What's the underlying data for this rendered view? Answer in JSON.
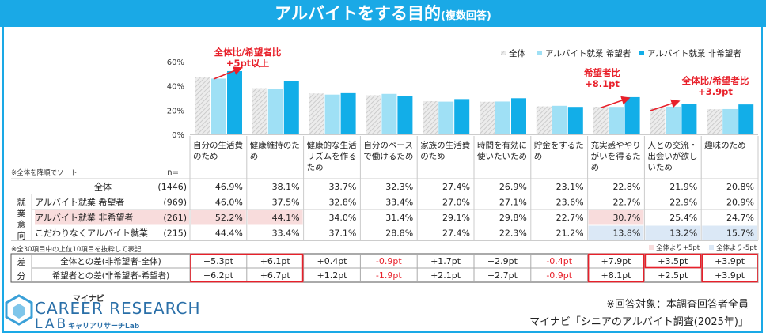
{
  "title": {
    "main": "アルバイトをする目的",
    "sub": "(複数回答)"
  },
  "colors": {
    "all": "#d9d9d9",
    "hope": "#9fe0f5",
    "nonhope": "#12aee8",
    "accent": "#e8202a",
    "pink": "#f8dcdc",
    "blue": "#dbe8f6"
  },
  "chart_data": {
    "type": "bar",
    "ylim": [
      0,
      60
    ],
    "yticks": [
      "0%",
      "20%",
      "40%",
      "60%"
    ],
    "legend": [
      "全体",
      "アルバイト就業 希望者",
      "アルバイト就業 非希望者"
    ],
    "categories": [
      [
        "自分の生活費",
        "のため"
      ],
      [
        "健康維持のた",
        "め"
      ],
      [
        "健康的な生活",
        "リズムを作る",
        "ため"
      ],
      [
        "自分のペース",
        "で働けるため"
      ],
      [
        "家族の生活費",
        "のため"
      ],
      [
        "時間を有効に",
        "使いたいため"
      ],
      [
        "貯金をするた",
        "め"
      ],
      [
        "充実感ややり",
        "がいを得るた",
        "め"
      ],
      [
        "人との交流・",
        "出会いが欲し",
        "いため"
      ],
      [
        "趣味のため"
      ]
    ],
    "series": [
      {
        "name": "全体",
        "values": [
          46.9,
          38.1,
          33.7,
          32.3,
          27.4,
          26.9,
          23.1,
          22.8,
          21.9,
          20.8
        ]
      },
      {
        "name": "アルバイト就業 希望者",
        "values": [
          46.0,
          37.5,
          32.8,
          33.4,
          27.0,
          27.1,
          23.6,
          22.7,
          22.9,
          20.9
        ]
      },
      {
        "name": "アルバイト就業 非希望者",
        "values": [
          52.2,
          44.1,
          34.0,
          31.4,
          29.1,
          29.8,
          22.7,
          30.7,
          25.4,
          24.7
        ]
      }
    ],
    "annotations": [
      {
        "lines": [
          "全体比/希望者比",
          "+5pt以上"
        ],
        "category": 0
      },
      {
        "lines": [
          "希望者比",
          "+8.1pt"
        ],
        "category": 7
      },
      {
        "lines": [
          "全体比/希望者比",
          "+3.9pt"
        ],
        "category": 9
      }
    ]
  },
  "table": {
    "sort_note": "※全体を降順でソート",
    "n_header": "n=",
    "row_group_label": [
      "就",
      "業",
      "意",
      "向"
    ],
    "diff_group_label": [
      "差",
      "分"
    ],
    "rows": [
      {
        "label": "全体",
        "n": "(1446)",
        "values": [
          "46.9%",
          "38.1%",
          "33.7%",
          "32.3%",
          "27.4%",
          "26.9%",
          "23.1%",
          "22.8%",
          "21.9%",
          "20.8%"
        ],
        "highlight": [
          "",
          "",
          "",
          "",
          "",
          "",
          "",
          "",
          "",
          ""
        ]
      },
      {
        "label": "アルバイト就業 希望者",
        "n": "(969)",
        "values": [
          "46.0%",
          "37.5%",
          "32.8%",
          "33.4%",
          "27.0%",
          "27.1%",
          "23.6%",
          "22.7%",
          "22.9%",
          "20.9%"
        ],
        "highlight": [
          "",
          "",
          "",
          "",
          "",
          "",
          "",
          "",
          "",
          ""
        ]
      },
      {
        "label": "アルバイト就業 非希望者",
        "n": "(261)",
        "values": [
          "52.2%",
          "44.1%",
          "34.0%",
          "31.4%",
          "29.1%",
          "29.8%",
          "22.7%",
          "30.7%",
          "25.4%",
          "24.7%"
        ],
        "highlight": [
          "pink",
          "pink",
          "",
          "",
          "",
          "",
          "",
          "pink",
          "",
          ""
        ]
      },
      {
        "label": "こだわりなくアルバイト就業",
        "n": "(215)",
        "values": [
          "44.4%",
          "33.4%",
          "37.1%",
          "28.8%",
          "27.4%",
          "22.3%",
          "21.2%",
          "13.8%",
          "13.2%",
          "15.7%"
        ],
        "highlight": [
          "",
          "",
          "",
          "",
          "",
          "",
          "",
          "blue",
          "blue",
          "blue"
        ]
      }
    ],
    "diff_rows": [
      {
        "label": "全体との差(非希望者-全体)",
        "values": [
          "+5.3pt",
          "+6.1pt",
          "+0.4pt",
          "-0.9pt",
          "+1.7pt",
          "+2.9pt",
          "-0.4pt",
          "+7.9pt",
          "+3.5pt",
          "+3.9pt"
        ]
      },
      {
        "label": "希望者との差(非希望者-希望者)",
        "values": [
          "+6.2pt",
          "+6.7pt",
          "+1.2pt",
          "-1.9pt",
          "+2.1pt",
          "+2.7pt",
          "-0.9pt",
          "+8.1pt",
          "+2.5pt",
          "+3.9pt"
        ]
      }
    ],
    "top_note": "※全30項目中の上位10項目を抜粋して表記",
    "key_pink": "全体より+5pt",
    "key_blue": "全体より-5pt"
  },
  "footer": {
    "target": "※回答対象：本調査回答者全員",
    "source": "マイナビ「シニアのアルバイト調査(2025年)」"
  },
  "logo": {
    "top": "マイナビ",
    "line1": "CAREER RESEARCH",
    "line2": "LAB",
    "kana": "キャリアリサーチLab"
  }
}
